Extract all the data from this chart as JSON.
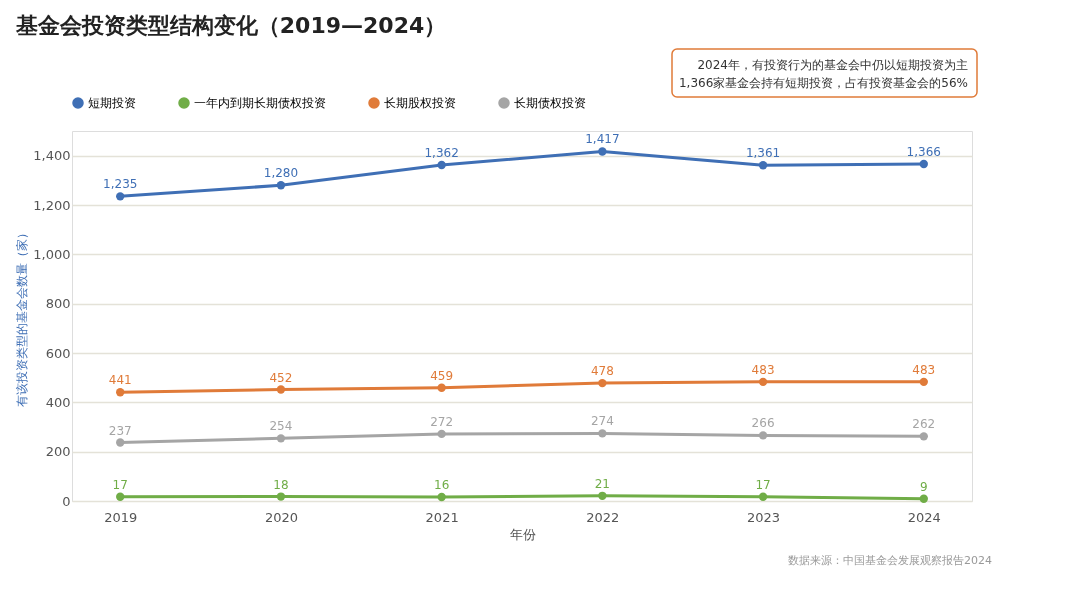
{
  "chart_data": {
    "type": "line",
    "title": "基金会投资类型结构变化（2019—2024）",
    "xlabel": "年份",
    "ylabel": "有该投资类型的基金会数量（家）",
    "categories": [
      "2019",
      "2020",
      "2021",
      "2022",
      "2023",
      "2024"
    ],
    "series": [
      {
        "name": "短期投资",
        "color": "#3f6fb5",
        "values": [
          1235,
          1280,
          1362,
          1417,
          1361,
          1366
        ],
        "value_labels": [
          "1,235",
          "1,280",
          "1,362",
          "1,417",
          "1,361",
          "1,366"
        ]
      },
      {
        "name": "一年内到期长期债权投资",
        "color": "#70ad47",
        "values": [
          17,
          18,
          16,
          21,
          17,
          9
        ]
      },
      {
        "name": "长期股权投资",
        "color": "#e07b39",
        "values": [
          441,
          452,
          459,
          478,
          483,
          483
        ]
      },
      {
        "name": "长期债权投资",
        "color": "#a5a5a5",
        "values": [
          237,
          254,
          272,
          274,
          266,
          262
        ]
      }
    ],
    "ylim": [
      0,
      1500
    ],
    "yticks": [
      0,
      200,
      400,
      600,
      800,
      {
        "value": 1000,
        "label": "1,000"
      },
      {
        "value": 1200,
        "label": "1,200"
      },
      {
        "value": 1400,
        "label": "1,400"
      }
    ],
    "grid": "y",
    "legend": "top left",
    "marker": "circle",
    "line_style": "solid",
    "data_labels": true,
    "annotations": [
      "2024年，有投资行为的基金会中仍以短期投资为主",
      "1,366家基金会持有短期投资，占有投资基金会的56%",
      "数据来源：中国基金会发展观察报告2024"
    ]
  }
}
